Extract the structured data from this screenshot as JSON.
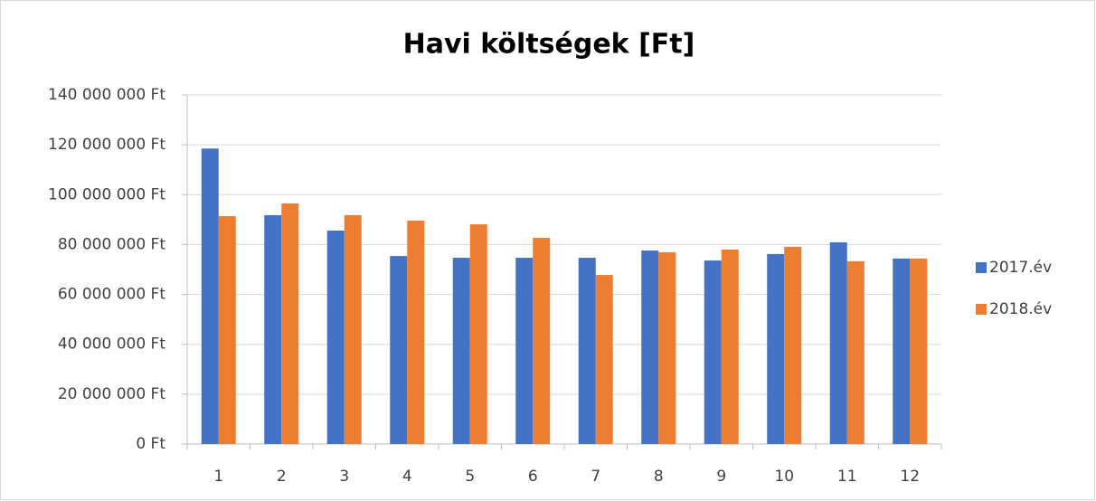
{
  "chart_data": {
    "type": "bar",
    "title": "Havi költségek [Ft]",
    "categories": [
      "1",
      "2",
      "3",
      "4",
      "5",
      "6",
      "7",
      "8",
      "9",
      "10",
      "11",
      "12"
    ],
    "series": [
      {
        "name": "2017.év",
        "color": "#4472c4",
        "values": [
          118500000,
          91800000,
          85600000,
          75400000,
          74700000,
          74700000,
          74700000,
          77600000,
          73600000,
          76200000,
          80900000,
          74400000
        ]
      },
      {
        "name": "2018.év",
        "color": "#ed7d31",
        "values": [
          91400000,
          96500000,
          91800000,
          89600000,
          88100000,
          82700000,
          67800000,
          76900000,
          78000000,
          79100000,
          73300000,
          74400000
        ]
      }
    ],
    "ylim": [
      0,
      140000000
    ],
    "yticks": [
      {
        "value": 0,
        "label": "0 Ft"
      },
      {
        "value": 20000000,
        "label": "20 000 000 Ft"
      },
      {
        "value": 40000000,
        "label": "40 000 000 Ft"
      },
      {
        "value": 60000000,
        "label": "60 000 000 Ft"
      },
      {
        "value": 80000000,
        "label": "80 000 000 Ft"
      },
      {
        "value": 100000000,
        "label": "100 000 000 Ft"
      },
      {
        "value": 120000000,
        "label": "120 000 000 Ft"
      },
      {
        "value": 140000000,
        "label": "140 000 000 Ft"
      }
    ],
    "grid": true,
    "legend": "right"
  }
}
